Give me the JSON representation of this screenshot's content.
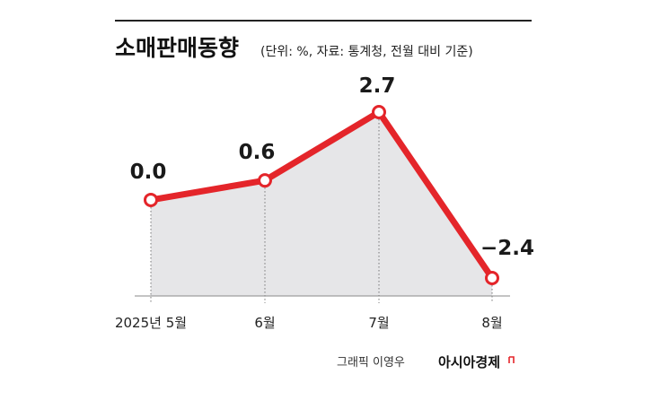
{
  "chart_data": {
    "type": "line",
    "title": "소매판매동향",
    "subtitle": "(단위: %, 자료: 통계청, 전월 대비 기준)",
    "categories": [
      "2025년 5월",
      "6월",
      "7월",
      "8월"
    ],
    "series": [
      {
        "values": [
          0.0,
          0.6,
          2.7,
          -2.4
        ]
      }
    ],
    "value_labels": [
      "0.0",
      "0.6",
      "2.7",
      "−2.4"
    ],
    "ylim": [
      -2.4,
      2.7
    ],
    "grid": false,
    "line_color": "#e4252a",
    "area_color": "#e6e6e8"
  },
  "footer": {
    "credit": "그래픽 이영우",
    "brand": "아시아경제",
    "brand_mark_color": "#e4252a"
  }
}
